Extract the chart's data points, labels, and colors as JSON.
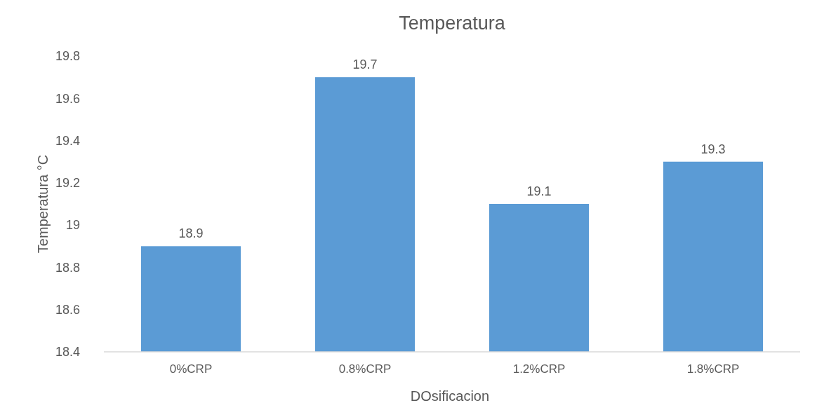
{
  "chart_data": {
    "type": "bar",
    "title": "Temperatura",
    "xlabel": "DOsificacion",
    "ylabel": "Temperatura °C",
    "categories": [
      "0%CRP",
      "0.8%CRP",
      "1.2%CRP",
      "1.8%CRP"
    ],
    "values": [
      18.9,
      19.7,
      19.1,
      19.3
    ],
    "color": "#5b9bd5",
    "ylim": [
      18.4,
      19.8
    ],
    "yticks": [
      {
        "value": 18.4,
        "label": "18.4"
      },
      {
        "value": 18.6,
        "label": "18.6"
      },
      {
        "value": 18.8,
        "label": "18.8"
      },
      {
        "value": 19,
        "label": "19"
      },
      {
        "value": 19.2,
        "label": "19.2"
      },
      {
        "value": 19.4,
        "label": "19.4"
      },
      {
        "value": 19.6,
        "label": "19.6"
      },
      {
        "value": 19.8,
        "label": "19.8"
      }
    ],
    "grid": false,
    "data_labels": true
  }
}
